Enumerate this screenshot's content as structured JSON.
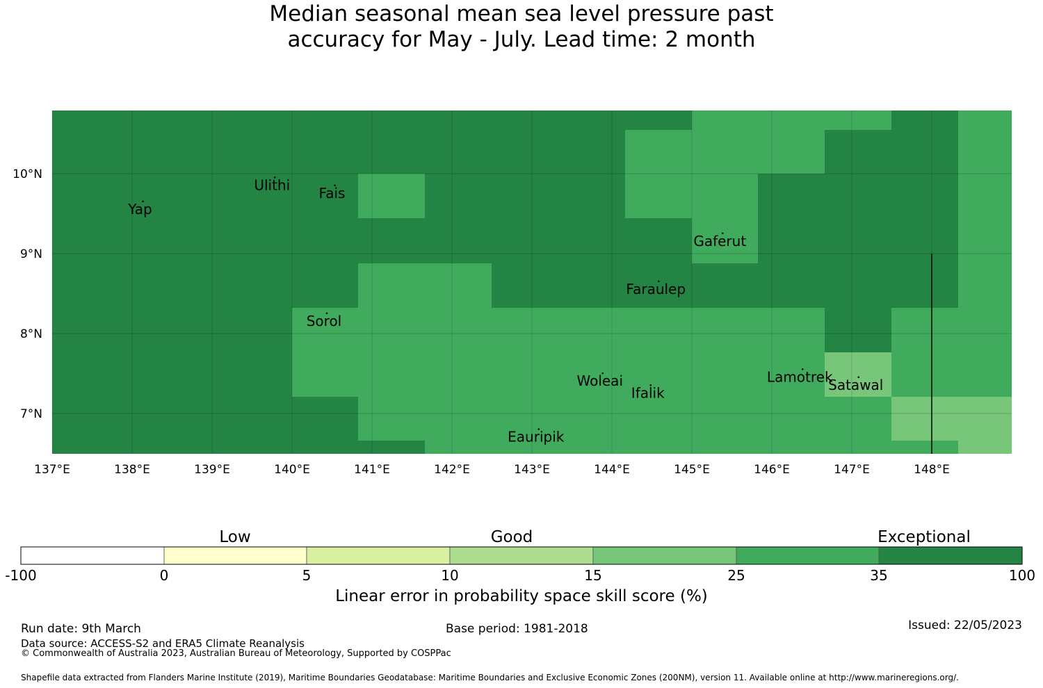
{
  "title_line1": "Median seasonal mean sea level pressure past",
  "title_line2": "accuracy for May - July. Lead time: 2 month",
  "map": {
    "x_ticks": [
      "137°E",
      "138°E",
      "139°E",
      "140°E",
      "141°E",
      "142°E",
      "143°E",
      "144°E",
      "145°E",
      "146°E",
      "147°E",
      "148°E"
    ],
    "y_ticks": [
      "10°N",
      "9°N",
      "8°N",
      "7°N"
    ],
    "lon_range": [
      137.0,
      149.0
    ],
    "lat_range": [
      6.5,
      10.8
    ],
    "grid": true,
    "colors": {
      "exceptional": "#238443",
      "high": "#41ab5d",
      "mid": "#78c679"
    },
    "islands": [
      {
        "name": "Yap",
        "lon": 138.1,
        "lat": 9.55
      },
      {
        "name": "Ulithi",
        "lon": 139.75,
        "lat": 9.85
      },
      {
        "name": "Fais",
        "lon": 140.5,
        "lat": 9.75
      },
      {
        "name": "Gaferut",
        "lon": 145.35,
        "lat": 9.15
      },
      {
        "name": "Faraulep",
        "lon": 144.55,
        "lat": 8.55
      },
      {
        "name": "Sorol",
        "lon": 140.4,
        "lat": 8.15
      },
      {
        "name": "Woleai",
        "lon": 143.85,
        "lat": 7.4
      },
      {
        "name": "Ifalik",
        "lon": 144.45,
        "lat": 7.25
      },
      {
        "name": "Lamotrek",
        "lon": 146.35,
        "lat": 7.45
      },
      {
        "name": "Satawal",
        "lon": 147.05,
        "lat": 7.35
      },
      {
        "name": "Eauripik",
        "lon": 143.05,
        "lat": 6.7
      }
    ]
  },
  "colorbar": {
    "category_labels": [
      {
        "text": "Low",
        "between": [
          "0",
          "5"
        ]
      },
      {
        "text": "Good",
        "between": [
          "10",
          "15"
        ]
      },
      {
        "text": "Exceptional",
        "between": [
          "35",
          "100"
        ]
      }
    ],
    "ticks": [
      "-100",
      "0",
      "5",
      "10",
      "15",
      "25",
      "35",
      "100"
    ],
    "colors": [
      "#ffffff",
      "#ffffcc",
      "#d9f0a3",
      "#addd8e",
      "#78c679",
      "#41ab5d",
      "#238443"
    ],
    "title": "Linear error in probability space skill score (%)"
  },
  "footer": {
    "run_date": "Run date: 9th March",
    "base_period": "Base period: 1981-2018",
    "issued": "Issued: 22/05/2023",
    "data_source": "Data source: ACCESS-S2 and ERA5 Climate Reanalysis",
    "copyright": "© Commonwealth of Australia 2023, Australian Bureau of Meteorology, Supported by COSPPac",
    "shapefile": "Shapefile data extracted from Flanders Marine Institute (2019), Maritime Boundaries Geodatabase: Maritime Boundaries and Exclusive Economic Zones (200NM), version 11. Available online at http://www.marineregions.org/."
  }
}
